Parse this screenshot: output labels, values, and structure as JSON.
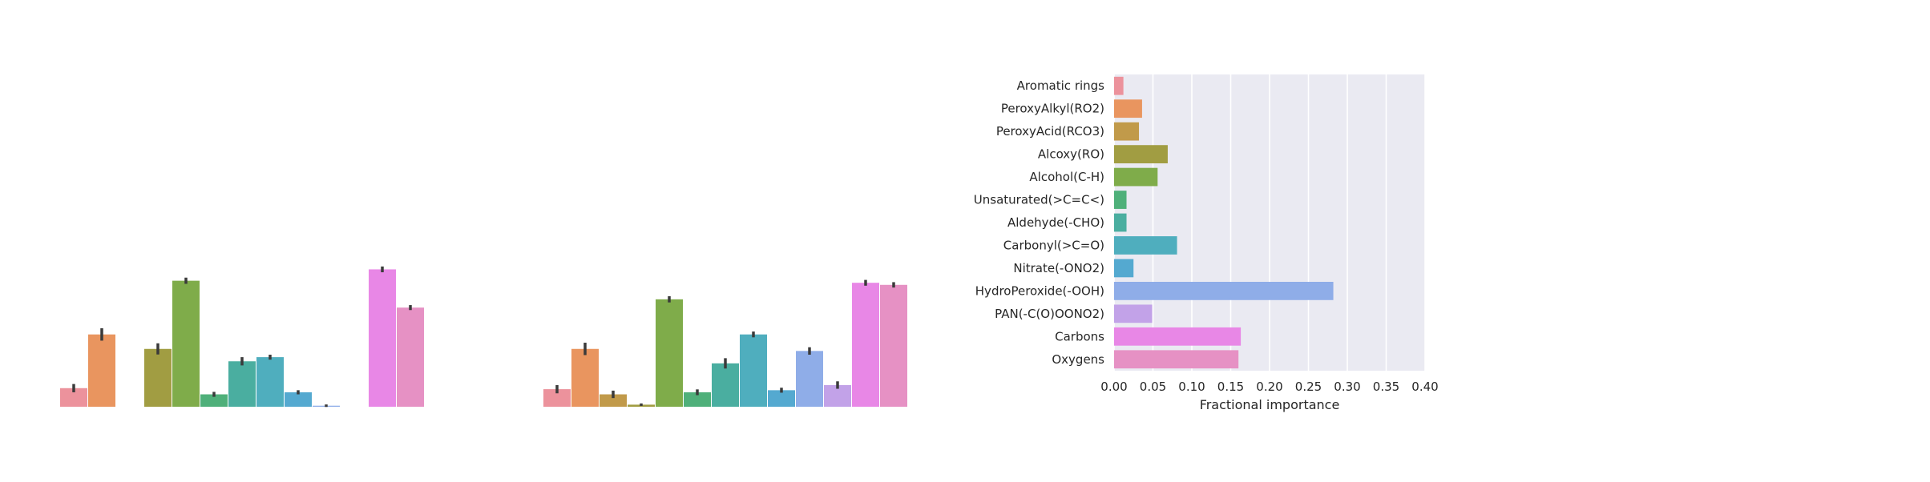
{
  "colors": {
    "background": "#ffffff",
    "panel": "#eaeaf2",
    "grid": "#ffffff",
    "errorbar": "#3a3a3a",
    "categories": [
      "#ec929c",
      "#e9955f",
      "#c19a4a",
      "#a19d42",
      "#7fac4a",
      "#4fb07a",
      "#4aaea0",
      "#4faebe",
      "#54a9d0",
      "#8fade8",
      "#c2a2e8",
      "#e887e6",
      "#e691c4"
    ]
  },
  "chart_data": [
    {
      "type": "bar",
      "title": "",
      "xlabel": "",
      "ylabel": "",
      "grid": false,
      "ylim": [
        0,
        1
      ],
      "categories": [
        "Aromatic rings",
        "PeroxyAlkyl(RO2)",
        "PeroxyAcid(RCO3)",
        "Alcoxy(RO)",
        "Alcohol(C-H)",
        "Unsaturated(>C=C<)",
        "Aldehyde(-CHO)",
        "Carbonyl(>C=O)",
        "Nitrate(-ONO2)",
        "HydroPeroxide(-OOH)",
        "PAN(-C(O)OONO2)",
        "Carbons",
        "Oxygens"
      ],
      "values": [
        0.09,
        0.35,
        0.0,
        0.28,
        0.61,
        0.06,
        0.22,
        0.24,
        0.07,
        0.005,
        0.0,
        0.665,
        0.48
      ],
      "errors": [
        0.02,
        0.03,
        0.0,
        0.027,
        0.015,
        0.012,
        0.02,
        0.012,
        0.01,
        0.006,
        0.0,
        0.014,
        0.012
      ]
    },
    {
      "type": "bar",
      "title": "",
      "xlabel": "",
      "ylabel": "",
      "grid": false,
      "ylim": [
        0,
        1
      ],
      "categories": [
        "Aromatic rings",
        "PeroxyAlkyl(RO2)",
        "PeroxyAcid(RCO3)",
        "Alcoxy(RO)",
        "Alcohol(C-H)",
        "Unsaturated(>C=C<)",
        "Aldehyde(-CHO)",
        "Carbonyl(>C=O)",
        "Nitrate(-ONO2)",
        "HydroPeroxide(-OOH)",
        "PAN(-C(O)OONO2)",
        "Carbons",
        "Oxygens"
      ],
      "values": [
        0.085,
        0.28,
        0.06,
        0.01,
        0.52,
        0.07,
        0.21,
        0.35,
        0.08,
        0.27,
        0.105,
        0.6,
        0.59
      ],
      "errors": [
        0.02,
        0.03,
        0.018,
        0.006,
        0.015,
        0.014,
        0.025,
        0.014,
        0.012,
        0.018,
        0.018,
        0.014,
        0.013
      ]
    },
    {
      "type": "bar",
      "orientation": "horizontal",
      "title": "",
      "xlabel": "Fractional importance",
      "ylabel": "",
      "grid": true,
      "xlim": [
        0,
        0.4
      ],
      "xticks": [
        0.0,
        0.05,
        0.1,
        0.15,
        0.2,
        0.25,
        0.3,
        0.35,
        0.4
      ],
      "xtick_labels": [
        "0.00",
        "0.05",
        "0.10",
        "0.15",
        "0.20",
        "0.25",
        "0.30",
        "0.35",
        "0.40"
      ],
      "categories": [
        "Aromatic rings",
        "PeroxyAlkyl(RO2)",
        "PeroxyAcid(RCO3)",
        "Alcoxy(RO)",
        "Alcohol(C-H)",
        "Unsaturated(>C=C<)",
        "Aldehyde(-CHO)",
        "Carbonyl(>C=O)",
        "Nitrate(-ONO2)",
        "HydroPeroxide(-OOH)",
        "PAN(-C(O)OONO2)",
        "Carbons",
        "Oxygens"
      ],
      "values": [
        0.012,
        0.036,
        0.032,
        0.069,
        0.056,
        0.016,
        0.016,
        0.081,
        0.025,
        0.282,
        0.049,
        0.163,
        0.16
      ]
    }
  ]
}
